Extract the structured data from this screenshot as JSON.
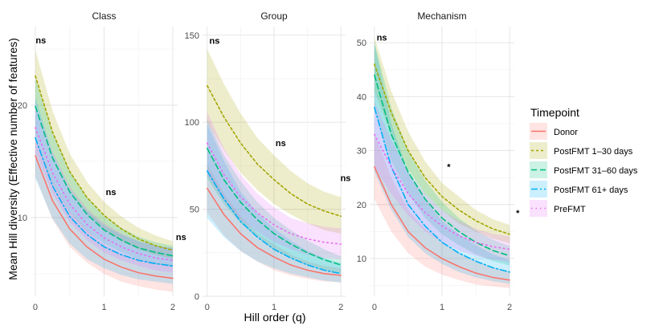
{
  "chart_data": {
    "type": "line",
    "xlabel": "Hill order (q)",
    "ylabel": "Mean Hill diversity (Effective number of features)",
    "legend": {
      "title": "Timepoint",
      "placement": "right",
      "entries": [
        {
          "name": "Donor",
          "color": "#F8766D",
          "dash": "solid"
        },
        {
          "name": "PostFMT 1–30 days",
          "color": "#A3A500",
          "dash": "dotted"
        },
        {
          "name": "PostFMT 31–60 days",
          "color": "#00BF7D",
          "dash": "dashed"
        },
        {
          "name": "PostFMT 61+ days",
          "color": "#00B0F6",
          "dash": "dashdot"
        },
        {
          "name": "PreFMT",
          "color": "#E76BF3",
          "dash": "dot"
        }
      ]
    },
    "grid": true,
    "x": [
      0,
      0.25,
      0.5,
      0.75,
      1,
      1.25,
      1.5,
      1.75,
      2
    ],
    "panels": [
      {
        "title": "Class",
        "xlim": [
          -0.07,
          2.07
        ],
        "ylim": [
          3,
          27
        ],
        "yticks": [
          10,
          20
        ],
        "xticks": [
          0,
          1,
          2
        ],
        "annotations": [
          {
            "text": "ns",
            "x": 0.08,
            "y": 25.8
          },
          {
            "text": "ns",
            "x": 1.1,
            "y": 12.3
          },
          {
            "text": "ns",
            "x": 2.12,
            "y": 8.3
          }
        ],
        "series": [
          {
            "name": "Donor",
            "values": [
              15.5,
              11.5,
              9.0,
              7.4,
              6.3,
              5.6,
              5.1,
              4.8,
              4.6
            ],
            "lower": [
              13.7,
              9.8,
              7.4,
              6.0,
              5.0,
              4.3,
              3.9,
              3.6,
              3.4
            ],
            "upper": [
              17.3,
              13.3,
              10.6,
              8.9,
              7.6,
              6.8,
              6.3,
              6.0,
              5.8
            ]
          },
          {
            "name": "PostFMT 1–30 days",
            "values": [
              22.6,
              17.6,
              14.1,
              11.8,
              10.2,
              9.0,
              8.1,
              7.5,
              7.1
            ],
            "lower": [
              20.3,
              15.7,
              12.5,
              10.4,
              9.0,
              7.9,
              7.2,
              6.7,
              6.3
            ],
            "upper": [
              24.9,
              19.5,
              15.7,
              13.2,
              11.4,
              10.1,
              9.1,
              8.4,
              7.9
            ]
          },
          {
            "name": "PostFMT 31–60 days",
            "values": [
              19.9,
              15.3,
              12.3,
              10.3,
              8.9,
              8.0,
              7.3,
              6.9,
              6.6
            ],
            "lower": [
              17.4,
              13.1,
              10.5,
              8.8,
              7.7,
              6.9,
              6.3,
              5.9,
              5.6
            ],
            "upper": [
              22.4,
              17.5,
              14.1,
              11.8,
              10.1,
              9.1,
              8.3,
              7.8,
              7.5
            ]
          },
          {
            "name": "PostFMT 61+ days",
            "values": [
              17.1,
              12.8,
              10.1,
              8.5,
              7.4,
              6.7,
              6.2,
              5.9,
              5.7
            ],
            "lower": [
              13.5,
              9.9,
              7.7,
              6.3,
              5.5,
              4.9,
              4.5,
              4.3,
              4.1
            ],
            "upper": [
              20.7,
              15.7,
              12.5,
              10.6,
              9.3,
              8.5,
              7.9,
              7.5,
              7.3
            ]
          },
          {
            "name": "PreFMT",
            "values": [
              18.0,
              14.0,
              11.2,
              9.4,
              8.2,
              7.4,
              6.8,
              6.4,
              6.2
            ],
            "lower": [
              15.8,
              12.1,
              9.6,
              8.0,
              6.9,
              6.2,
              5.7,
              5.3,
              5.1
            ],
            "upper": [
              20.2,
              15.9,
              12.8,
              10.8,
              9.5,
              8.6,
              7.9,
              7.5,
              7.3
            ]
          }
        ]
      },
      {
        "title": "Group",
        "xlim": [
          -0.07,
          2.07
        ],
        "ylim": [
          0,
          155
        ],
        "yticks": [
          0,
          50,
          100,
          150
        ],
        "xticks": [
          0,
          1,
          2
        ],
        "annotations": [
          {
            "text": "ns",
            "x": 0.11,
            "y": 147
          },
          {
            "text": "ns",
            "x": 1.1,
            "y": 88
          },
          {
            "text": "ns",
            "x": 2.07,
            "y": 68
          }
        ],
        "series": [
          {
            "name": "Donor",
            "values": [
              62,
              47,
              36,
              28,
              22.5,
              18,
              15,
              13,
              12
            ],
            "lower": [
              48,
              35,
              26,
              20,
              15,
              12,
              10,
              8.5,
              8
            ],
            "upper": [
              76,
              59,
              46,
              36,
              30,
              24,
              20,
              17.5,
              16
            ]
          },
          {
            "name": "PostFMT 1–30 days",
            "values": [
              121,
              103,
              88,
              76,
              67,
              59,
              53,
              49,
              46
            ],
            "lower": [
              100,
              84,
              71,
              61,
              53,
              47,
              42,
              38,
              36
            ],
            "upper": [
              142,
              122,
              105,
              91,
              81,
              72,
              65,
              60,
              57
            ]
          },
          {
            "name": "PostFMT 31–60 days",
            "values": [
              85,
              67,
              54,
              44,
              36,
              30,
              25,
              21,
              18
            ],
            "lower": [
              68,
              53,
              42,
              34,
              27,
              22,
              18,
              15,
              13
            ],
            "upper": [
              102,
              81,
              66,
              54,
              45,
              38,
              32,
              27,
              23
            ]
          },
          {
            "name": "PostFMT 61+ days",
            "values": [
              72,
              56,
              43,
              34,
              27,
              22,
              18,
              15,
              13
            ],
            "lower": [
              45,
              34,
              26,
              20,
              16,
              13,
              11,
              9,
              8
            ],
            "upper": [
              99,
              78,
              60,
              48,
              39,
              32,
              26,
              22,
              19
            ]
          },
          {
            "name": "PreFMT",
            "values": [
              88,
              70,
              57,
              48,
              41,
              36,
              33,
              31,
              30
            ],
            "lower": [
              70,
              55,
              44,
              37,
              31,
              27,
              24,
              22,
              21
            ],
            "upper": [
              106,
              85,
              70,
              59,
              51,
              45,
              42,
              40,
              39
            ]
          }
        ]
      },
      {
        "title": "Mechanism",
        "xlim": [
          -0.07,
          2.07
        ],
        "ylim": [
          3,
          53
        ],
        "yticks": [
          10,
          20,
          30,
          40,
          50
        ],
        "xticks": [
          0,
          1,
          2
        ],
        "annotations": [
          {
            "text": "ns",
            "x": 0.11,
            "y": 51
          },
          {
            "text": "*",
            "x": 1.1,
            "y": 27
          },
          {
            "text": "*",
            "x": 2.12,
            "y": 18.5
          }
        ],
        "series": [
          {
            "name": "Donor",
            "values": [
              27,
              20,
              15,
              12,
              10,
              8.5,
              7.3,
              6.5,
              6
            ],
            "lower": [
              21,
              15,
              11,
              8.5,
              7,
              6,
              5.2,
              4.8,
              4.5
            ],
            "upper": [
              33,
              25,
              19,
              15.5,
              13,
              11,
              9.5,
              8.3,
              7.5
            ]
          },
          {
            "name": "PostFMT 1–30 days",
            "values": [
              46,
              37,
              30,
              25,
              21.5,
              19,
              17,
              15.5,
              14.5
            ],
            "lower": [
              41,
              33,
              26.5,
              22,
              19,
              16.5,
              15,
              13.7,
              12.8
            ],
            "upper": [
              51,
              41,
              33.5,
              28,
              24,
              21.5,
              19,
              17.3,
              16.2
            ]
          },
          {
            "name": "PostFMT 31–60 days",
            "values": [
              44,
              33,
              26,
              21,
              17.5,
              15,
              13,
              11.5,
              10.5
            ],
            "lower": [
              38,
              28,
              22,
              17.5,
              14.5,
              12.5,
              10.8,
              9.5,
              8.7
            ],
            "upper": [
              50,
              38,
              30,
              24.5,
              20.5,
              17.5,
              15.2,
              13.5,
              12.3
            ]
          },
          {
            "name": "PostFMT 61+ days",
            "values": [
              38,
              27,
              20,
              16,
              13,
              11,
              9.5,
              8.3,
              7.5
            ],
            "lower": [
              26,
              19,
              14,
              11,
              9,
              7.5,
              6.5,
              5.8,
              5.3
            ],
            "upper": [
              50,
              35,
              26,
              21,
              17,
              14.5,
              12.5,
              10.8,
              9.7
            ]
          },
          {
            "name": "PreFMT",
            "values": [
              33,
              27,
              22,
              18.5,
              16,
              14.2,
              13,
              12.2,
              11.7
            ],
            "lower": [
              27,
              22,
              18,
              15,
              13,
              11.5,
              10.5,
              9.8,
              9.3
            ],
            "upper": [
              39,
              32,
              26,
              22,
              19,
              17,
              15.5,
              14.6,
              14.1
            ]
          }
        ]
      }
    ]
  }
}
